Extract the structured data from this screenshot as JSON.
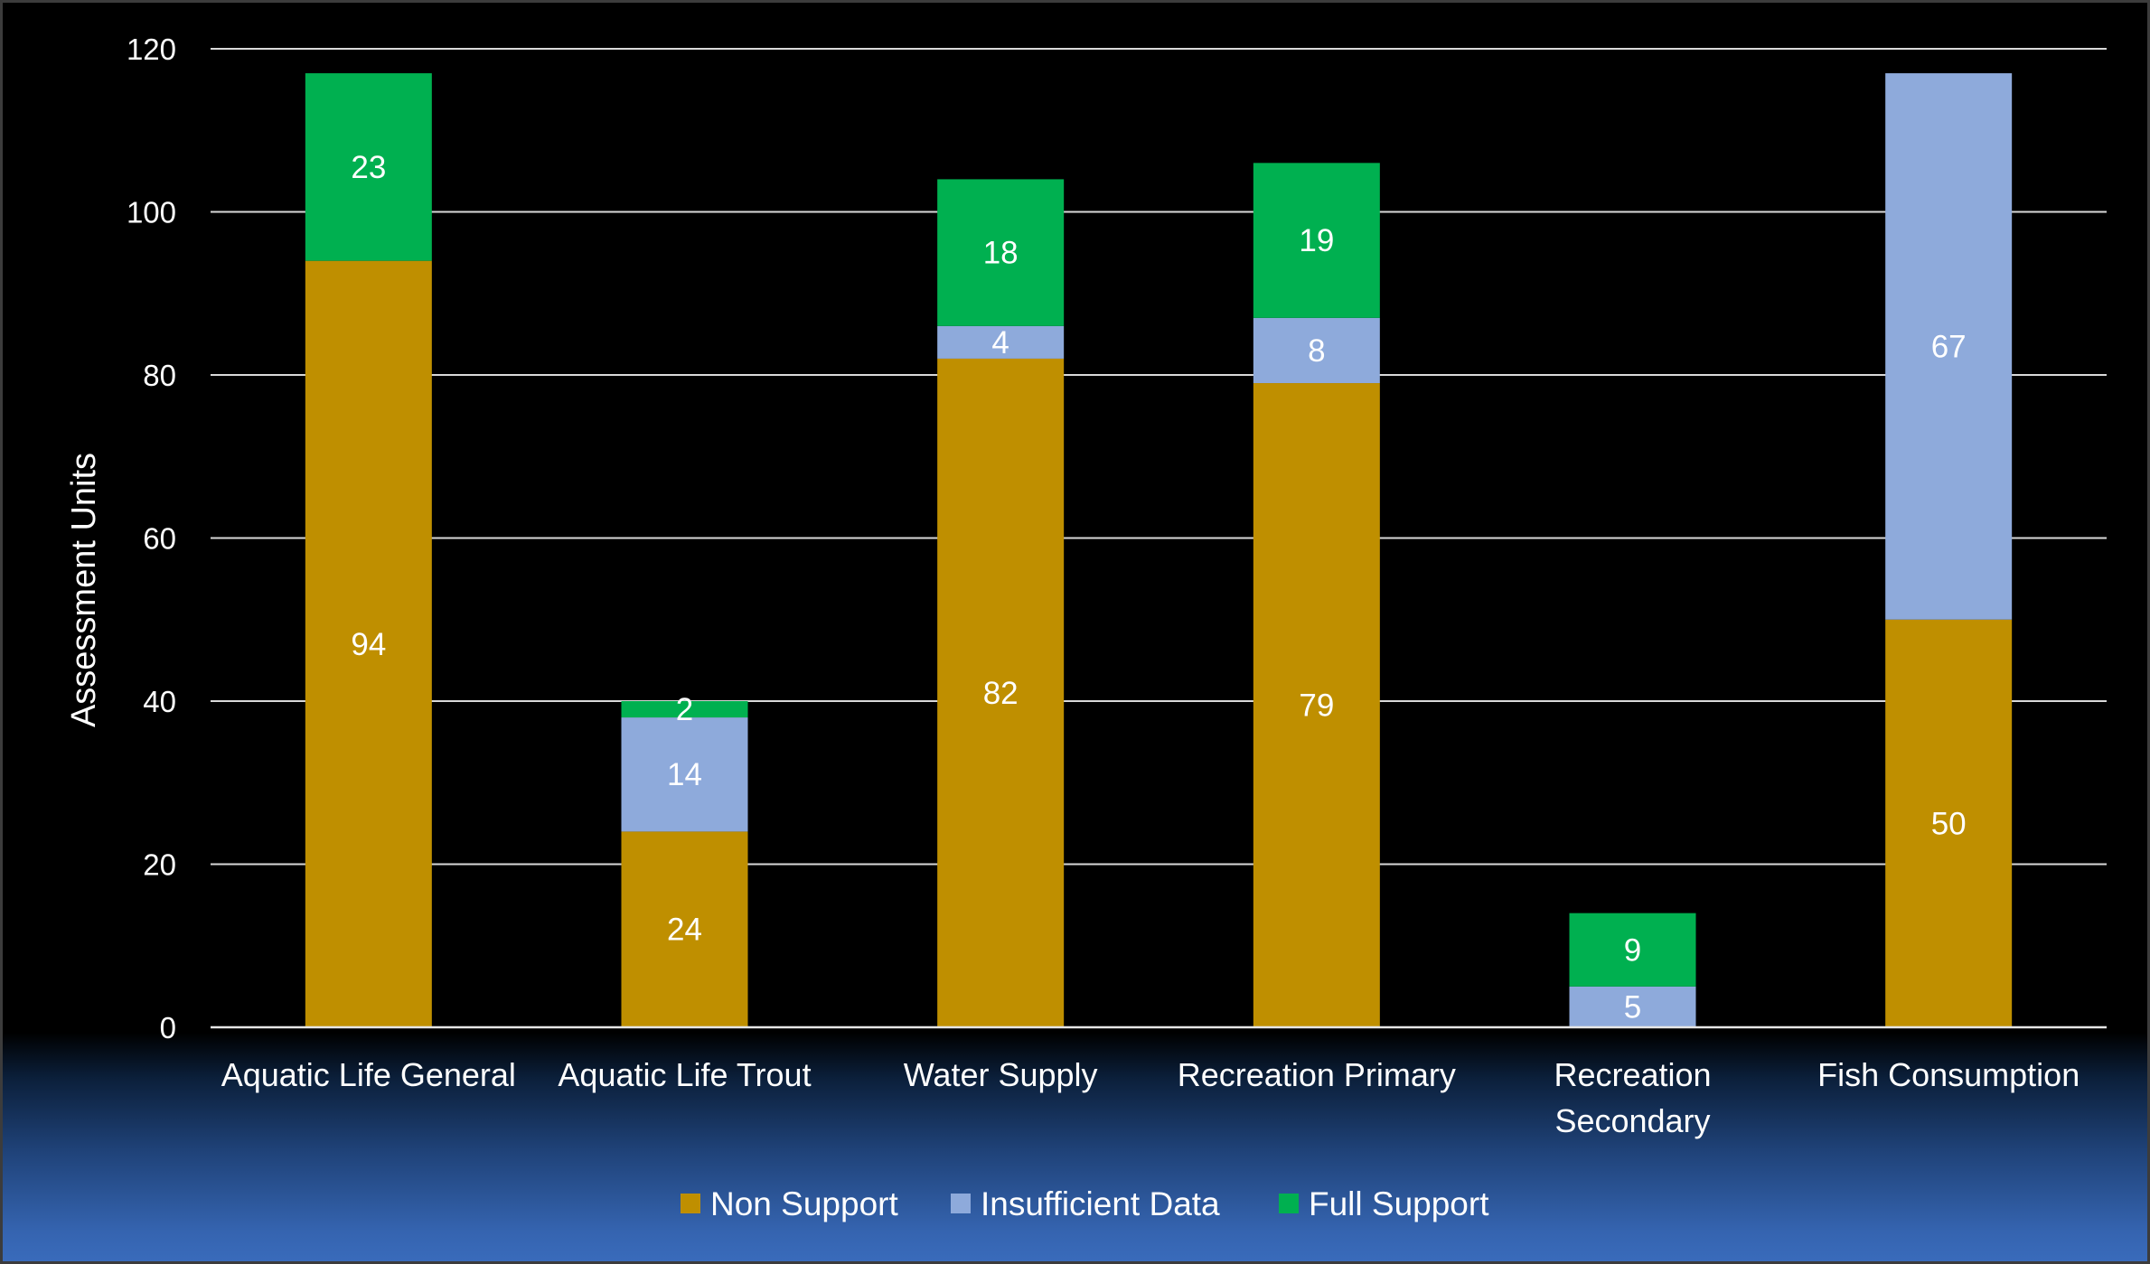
{
  "chart_data": {
    "type": "bar",
    "stacked": true,
    "title": "",
    "xlabel": "",
    "ylabel": "Assessment Units",
    "ylim": [
      0,
      120
    ],
    "yticks": [
      0,
      20,
      40,
      60,
      80,
      100,
      120
    ],
    "grid": true,
    "legend_position": "bottom",
    "categories": [
      [
        "Aquatic Life General"
      ],
      [
        "Aquatic Life Trout"
      ],
      [
        "Water Supply"
      ],
      [
        "Recreation Primary"
      ],
      [
        "Recreation",
        "Secondary"
      ],
      [
        "Fish Consumption"
      ]
    ],
    "series": [
      {
        "name": "Non Support",
        "color": "#bf8f00",
        "values": [
          94,
          24,
          82,
          79,
          0,
          50
        ]
      },
      {
        "name": "Insufficient Data",
        "color": "#8eaadb",
        "values": [
          0,
          14,
          4,
          8,
          5,
          67
        ]
      },
      {
        "name": "Full Support",
        "color": "#00b050",
        "values": [
          23,
          2,
          18,
          19,
          9,
          0
        ]
      }
    ]
  }
}
